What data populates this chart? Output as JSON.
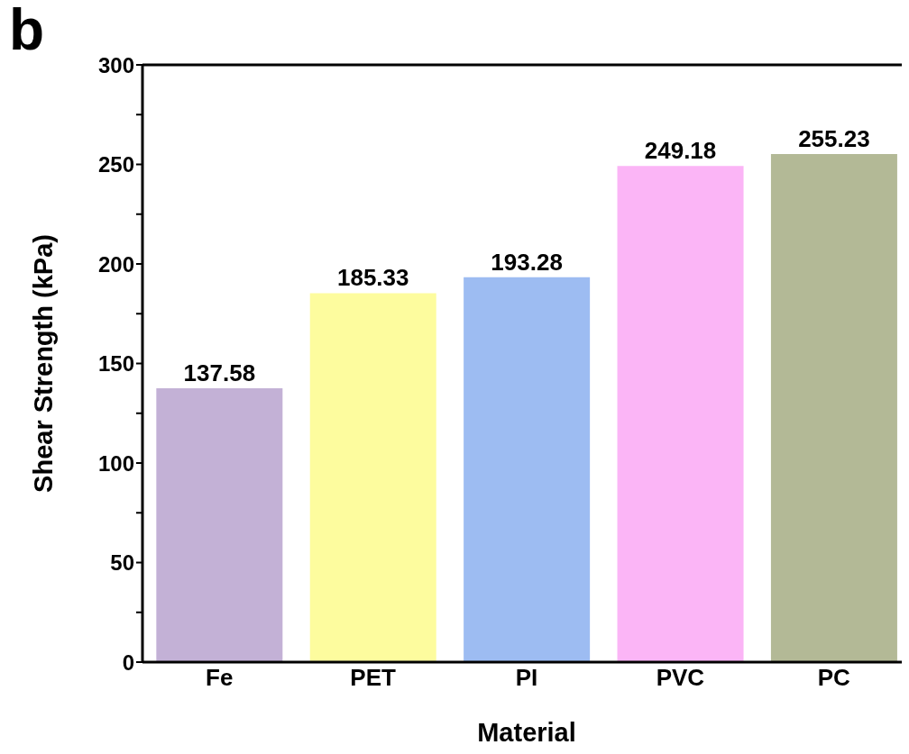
{
  "chart_data": {
    "type": "bar",
    "xlabel": "Material",
    "ylabel": "Shear Strength (kPa)",
    "annotations": [
      "b"
    ],
    "categories": [
      "Fe",
      "PET",
      "PI",
      "PVC",
      "PC"
    ],
    "values": [
      137.58,
      185.33,
      193.28,
      249.18,
      255.23
    ],
    "colors": [
      "#c3b1d6",
      "#fdfc9e",
      "#9dbcf2",
      "#fbb5f6",
      "#b3b996"
    ],
    "data_labels": true,
    "ylim": [
      0,
      300
    ],
    "yticks": [
      0,
      {
        "value": 25,
        "label": null
      },
      50,
      {
        "value": 75,
        "label": null
      },
      100,
      {
        "value": 125,
        "label": null
      },
      150,
      {
        "value": 175,
        "label": null
      },
      200,
      {
        "value": 225,
        "label": null
      },
      250,
      {
        "value": 275,
        "label": null
      },
      300
    ],
    "grid": false
  }
}
